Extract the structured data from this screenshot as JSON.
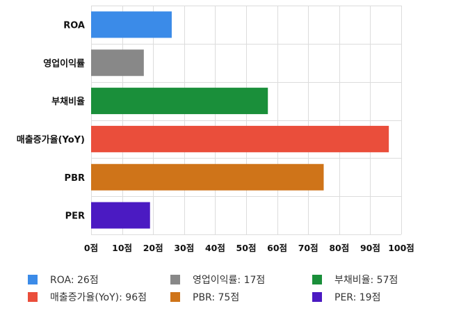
{
  "chart_data": {
    "type": "bar",
    "orientation": "horizontal",
    "categories": [
      "ROA",
      "영업이익률",
      "부채비율",
      "매출증가율(YoY)",
      "PBR",
      "PER"
    ],
    "values": [
      26,
      17,
      57,
      96,
      75,
      19
    ],
    "colors": [
      "#3b8be8",
      "#888888",
      "#1a8f3a",
      "#ea4e3b",
      "#cf7419",
      "#4b1ac2"
    ],
    "xlim": [
      0,
      100
    ],
    "xticks": [
      "0점",
      "10점",
      "20점",
      "30점",
      "40점",
      "50점",
      "60점",
      "70점",
      "80점",
      "90점",
      "100점"
    ],
    "grid": true,
    "legend_position": "bottom",
    "legend": [
      "ROA: 26점",
      "영업이익률: 17점",
      "부채비율: 57점",
      "매출증가율(YoY): 96점",
      "PBR: 75점",
      "PER: 19점"
    ]
  }
}
